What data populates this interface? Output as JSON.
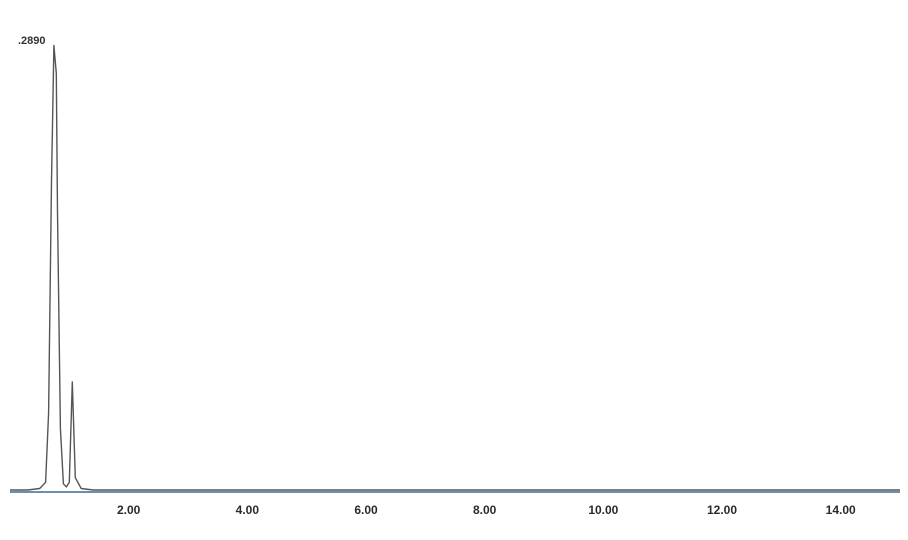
{
  "chart_data": {
    "type": "line",
    "title": "",
    "xlabel": "",
    "ylabel": "",
    "y_max_label": ".2890",
    "xlim": [
      0.0,
      15.0
    ],
    "ylim": [
      0.0,
      0.289
    ],
    "x_ticks": [
      {
        "value": 2.0,
        "label": "2.00"
      },
      {
        "value": 4.0,
        "label": "4.00"
      },
      {
        "value": 6.0,
        "label": "6.00"
      },
      {
        "value": 8.0,
        "label": "8.00"
      },
      {
        "value": 10.0,
        "label": "10.00"
      },
      {
        "value": 12.0,
        "label": "12.00"
      },
      {
        "value": 14.0,
        "label": "14.00"
      }
    ],
    "grid": false,
    "series": [
      {
        "color": "#555555",
        "x": [
          0.0,
          0.3,
          0.5,
          0.6,
          0.65,
          0.7,
          0.74,
          0.78,
          0.8,
          0.85,
          0.9,
          0.95,
          1.0,
          1.05,
          1.1,
          1.2,
          1.4,
          2.0,
          4.0,
          6.0,
          8.0,
          10.0,
          12.0,
          14.0,
          15.0
        ],
        "y": [
          0.0,
          0.0,
          0.001,
          0.005,
          0.05,
          0.2,
          0.288,
          0.27,
          0.18,
          0.04,
          0.004,
          0.002,
          0.005,
          0.07,
          0.008,
          0.001,
          0.0,
          0.0,
          0.0,
          0.0,
          0.0,
          0.0,
          0.0,
          0.0,
          0.0
        ]
      }
    ]
  }
}
